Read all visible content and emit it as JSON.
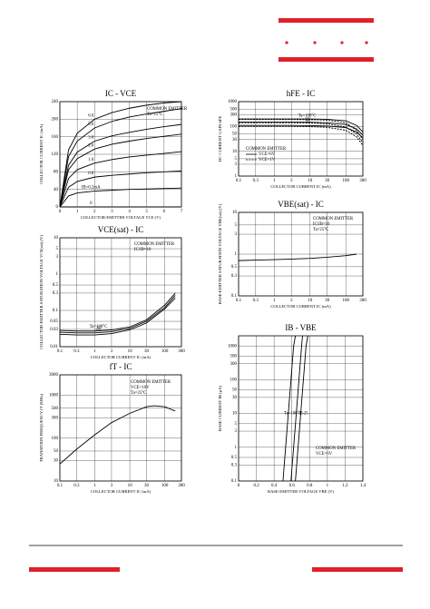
{
  "chart_data": [
    {
      "type": "line",
      "title": "IC - VCE",
      "xlabel": "COLLECTOR-EMITTER VOLTAGE VCE (V)",
      "ylabel": "COLLECTOR CURRENT IC (mA)",
      "xlim": [
        0,
        7
      ],
      "ylim": [
        0,
        240
      ],
      "xticks": [
        0,
        1,
        2,
        3,
        4,
        5,
        6,
        7
      ],
      "yticks": [
        0,
        40,
        80,
        120,
        160,
        200,
        240
      ],
      "x_log": false,
      "y_log": false,
      "grid": true,
      "annotations": [
        "COMMON EMITTER",
        "Ta=25°C"
      ],
      "x": [
        0,
        0.5,
        1,
        2,
        3,
        4,
        5,
        6,
        7
      ],
      "series": [
        {
          "name": "6.0",
          "color": "#000000",
          "values": [
            0,
            130,
            168,
            200,
            215,
            225,
            232,
            237,
            240
          ]
        },
        {
          "name": "5.0",
          "color": "#000000",
          "values": [
            0,
            115,
            150,
            180,
            195,
            205,
            212,
            218,
            224
          ]
        },
        {
          "name": "3.0",
          "color": "#000000",
          "values": [
            0,
            95,
            125,
            150,
            162,
            170,
            177,
            183,
            188
          ]
        },
        {
          "name": "2.6",
          "color": "#000000",
          "values": [
            0,
            85,
            110,
            132,
            143,
            150,
            156,
            161,
            166
          ]
        },
        {
          "name": "1.6",
          "color": "#000000",
          "values": [
            0,
            65,
            85,
            100,
            108,
            114,
            118,
            122,
            126
          ]
        },
        {
          "name": "0.8",
          "color": "#000000",
          "values": [
            0,
            45,
            58,
            68,
            72,
            75,
            78,
            80,
            82
          ]
        },
        {
          "name": "IB=0.2mA",
          "color": "#000000",
          "values": [
            0,
            25,
            32,
            36,
            38,
            40,
            41,
            42,
            43
          ]
        },
        {
          "name": "0",
          "color": "#000000",
          "values": [
            0,
            0,
            0,
            0,
            0,
            0,
            0,
            0,
            0
          ]
        }
      ]
    },
    {
      "type": "line",
      "title": "hFE - IC",
      "xlabel": "COLLECTOR CURRENT IC (mA)",
      "ylabel": "DC CURRENT GAIN hFE",
      "xlim": [
        0.1,
        300
      ],
      "ylim": [
        1,
        1000
      ],
      "xticks": [
        0.1,
        0.3,
        1,
        3,
        10,
        30,
        100,
        300
      ],
      "yticks": [
        1,
        3,
        5,
        10,
        30,
        50,
        100,
        300,
        500,
        1000
      ],
      "x_log": true,
      "y_log": true,
      "grid": true,
      "annotations": [
        "COMMON EMITTER"
      ],
      "legend": [
        {
          "label": "VCE=6V",
          "dash": false
        },
        {
          "label": "VCE=1V",
          "dash": true
        }
      ],
      "x": [
        0.1,
        0.3,
        1,
        3,
        10,
        30,
        100,
        200,
        300
      ],
      "series": [
        {
          "name": "Ta=100°C",
          "color": "#000000",
          "dash": false,
          "values": [
            200,
            200,
            200,
            200,
            200,
            195,
            170,
            110,
            60
          ]
        },
        {
          "name": "25",
          "color": "#000000",
          "dash": false,
          "values": [
            150,
            150,
            150,
            150,
            148,
            140,
            120,
            80,
            45
          ]
        },
        {
          "name": "-25",
          "color": "#000000",
          "dash": false,
          "values": [
            110,
            110,
            110,
            110,
            108,
            104,
            90,
            60,
            35
          ]
        },
        {
          "color": "#000000",
          "dash": true,
          "values": [
            190,
            190,
            190,
            190,
            188,
            180,
            140,
            70,
            30
          ]
        },
        {
          "color": "#000000",
          "dash": true,
          "values": [
            140,
            140,
            140,
            140,
            138,
            128,
            95,
            50,
            22
          ]
        },
        {
          "color": "#000000",
          "dash": true,
          "values": [
            100,
            100,
            100,
            100,
            98,
            92,
            70,
            38,
            17
          ]
        }
      ]
    },
    {
      "type": "line",
      "title": "VCE(sat) - IC",
      "xlabel": "COLLECTOR CURRENT IC (mA)",
      "ylabel": "COLLECTOR-EMITTER SATURATION VOLTAGE VCE(sat) (V)",
      "xlim": [
        0.1,
        300
      ],
      "ylim": [
        0.01,
        10
      ],
      "xticks": [
        0.1,
        0.3,
        1,
        3,
        10,
        30,
        100,
        300
      ],
      "yticks": [
        0.01,
        0.03,
        0.05,
        0.1,
        0.3,
        0.5,
        1,
        3,
        5,
        10
      ],
      "x_log": true,
      "y_log": true,
      "grid": true,
      "annotations": [
        "COMMON EMITTER",
        "IC/IB=10"
      ],
      "x": [
        0.1,
        0.3,
        1,
        3,
        10,
        30,
        100,
        200
      ],
      "series": [
        {
          "name": "Ta=100°C",
          "color": "#000000",
          "values": [
            0.028,
            0.027,
            0.027,
            0.029,
            0.035,
            0.055,
            0.14,
            0.3
          ]
        },
        {
          "name": "25",
          "color": "#000000",
          "values": [
            0.025,
            0.024,
            0.024,
            0.026,
            0.032,
            0.05,
            0.12,
            0.26
          ]
        },
        {
          "name": "-25",
          "color": "#000000",
          "values": [
            0.022,
            0.021,
            0.021,
            0.023,
            0.029,
            0.045,
            0.11,
            0.22
          ]
        }
      ]
    },
    {
      "type": "line",
      "title": "VBE(sat) - IC",
      "xlabel": "COLLECTOR CURRENT IC (mA)",
      "ylabel": "BASE-EMITTER SATURATION VOLTAGE VBE(sat) (V)",
      "xlim": [
        0.1,
        300
      ],
      "ylim": [
        0.1,
        10
      ],
      "xticks": [
        0.1,
        0.3,
        1,
        3,
        10,
        30,
        100,
        300
      ],
      "yticks": [
        0.1,
        0.3,
        0.5,
        1,
        3,
        5,
        10
      ],
      "x_log": true,
      "y_log": true,
      "grid": true,
      "annotations": [
        "COMMON EMITTER",
        "IC/IB=10",
        "Ta=25°C"
      ],
      "x": [
        0.1,
        0.3,
        1,
        3,
        10,
        30,
        100,
        200
      ],
      "series": [
        {
          "color": "#000000",
          "values": [
            0.7,
            0.72,
            0.74,
            0.76,
            0.79,
            0.84,
            0.92,
            1.0
          ]
        }
      ]
    },
    {
      "type": "line",
      "title": "fT - IC",
      "xlabel": "COLLECTOR CURRENT IC (mA)",
      "ylabel": "TRANSITION FREQUENCY fT (MHz)",
      "xlim": [
        0.1,
        300
      ],
      "ylim": [
        10,
        3000
      ],
      "xticks": [
        0.1,
        0.3,
        1,
        3,
        10,
        30,
        100,
        300
      ],
      "yticks": [
        10,
        30,
        50,
        100,
        300,
        500,
        1000,
        3000
      ],
      "x_log": true,
      "y_log": true,
      "grid": true,
      "annotations": [
        "COMMON EMITTER",
        "VCE=10V",
        "Ta=25°C"
      ],
      "x": [
        0.1,
        0.3,
        1,
        3,
        10,
        30,
        50,
        100,
        200
      ],
      "series": [
        {
          "color": "#000000",
          "values": [
            25,
            55,
            120,
            230,
            380,
            540,
            570,
            540,
            430
          ]
        }
      ]
    },
    {
      "type": "line",
      "title": "IB - VBE",
      "xlabel": "BASE-EMITTER VOLTAGE VBE (V)",
      "ylabel": "BASE CURRENT IB (μA)",
      "xlim": [
        0,
        1.4
      ],
      "ylim": [
        0.1,
        2000
      ],
      "xticks": [
        0,
        0.2,
        0.4,
        0.6,
        0.8,
        1.0,
        1.2,
        1.4
      ],
      "yticks": [
        0.1,
        0.3,
        0.5,
        1,
        3,
        5,
        10,
        30,
        50,
        100,
        300,
        500,
        1000
      ],
      "x_log": false,
      "y_log": true,
      "grid": true,
      "annotations": [
        "COMMON EMITTER",
        "VCE=6V"
      ],
      "series": [
        {
          "name": "Ta=100°C",
          "color": "#000000",
          "x": [
            0.5,
            0.53,
            0.56,
            0.59,
            0.62,
            0.64
          ],
          "values": [
            0.1,
            1,
            10,
            100,
            1000,
            2000
          ]
        },
        {
          "name": "25",
          "color": "#000000",
          "x": [
            0.59,
            0.62,
            0.65,
            0.68,
            0.71,
            0.72
          ],
          "values": [
            0.1,
            1,
            10,
            100,
            1000,
            2000
          ]
        },
        {
          "name": "-25",
          "color": "#000000",
          "x": [
            0.64,
            0.67,
            0.7,
            0.73,
            0.76,
            0.78
          ],
          "values": [
            0.1,
            1,
            10,
            100,
            1000,
            2000
          ]
        }
      ]
    }
  ]
}
